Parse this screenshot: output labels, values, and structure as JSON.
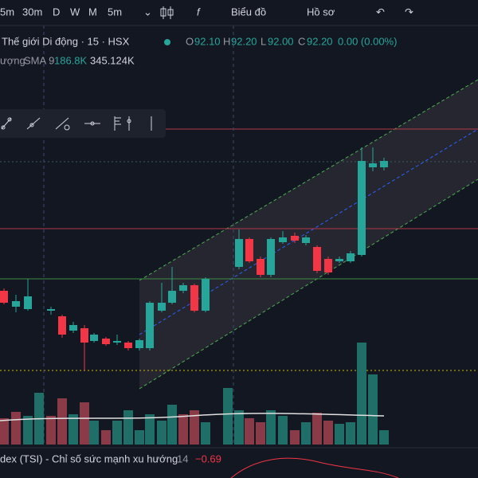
{
  "toolbar": {
    "intervals": [
      "5m",
      "30m",
      "D",
      "W",
      "M",
      "5m"
    ],
    "chart_menu": "Biểu đồ",
    "profile_menu": "Hồ sơ"
  },
  "legend": {
    "symbol": "Thế giới Di động · 15 · HSX",
    "open_label": "O",
    "open": "92.10",
    "high_label": "H",
    "high": "92.20",
    "low_label": "L",
    "low": "92.00",
    "close_label": "C",
    "close": "92.20",
    "change": "0.00 (0.00%)"
  },
  "volume_legend": {
    "name": "ượng",
    "sma": "SMA 9",
    "value": "186.8K",
    "sma_value": "345.124K"
  },
  "indicator": {
    "name": "dex (TSI) - Chỉ số sức mạnh xu hướng",
    "length": "14",
    "value": "−0.69"
  }
}
